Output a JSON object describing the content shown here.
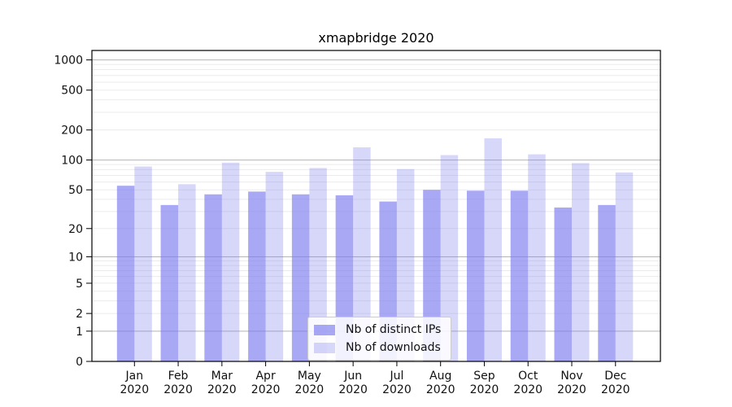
{
  "chart_data": {
    "type": "bar",
    "title": "xmapbridge 2020",
    "categories": [
      "Jan",
      "Feb",
      "Mar",
      "Apr",
      "May",
      "Jun",
      "Jul",
      "Aug",
      "Sep",
      "Oct",
      "Nov",
      "Dec"
    ],
    "x_tick_line2": "2020",
    "series": [
      {
        "name": "Nb of distinct IPs",
        "values": [
          55,
          35,
          45,
          48,
          45,
          44,
          38,
          50,
          49,
          49,
          33,
          35
        ],
        "color": "rgba(123,123,240,0.66)"
      },
      {
        "name": "Nb of downloads",
        "values": [
          86,
          57,
          94,
          76,
          83,
          134,
          81,
          112,
          165,
          114,
          93,
          75
        ],
        "color": "rgba(123,123,240,0.30)"
      }
    ],
    "yticks": [
      0,
      1,
      2,
      5,
      10,
      20,
      50,
      100,
      200,
      500,
      1000
    ],
    "scale": "log1p",
    "ylim": [
      0,
      1250
    ],
    "grid": {
      "major_ticks": [
        1,
        10,
        100,
        1000
      ],
      "minor_ticks": [
        2,
        3,
        4,
        5,
        6,
        7,
        8,
        9,
        20,
        30,
        40,
        50,
        60,
        70,
        80,
        90,
        200,
        300,
        400,
        500,
        600,
        700,
        800,
        900
      ],
      "major_color": "#b5b5b5",
      "minor_color": "#ebebeb"
    },
    "legend": {
      "position": "lower-center",
      "entries": [
        "Nb of distinct IPs",
        "Nb of downloads"
      ]
    },
    "axis_color": "#000000",
    "text_color": "#111111",
    "background": "#ffffff"
  }
}
